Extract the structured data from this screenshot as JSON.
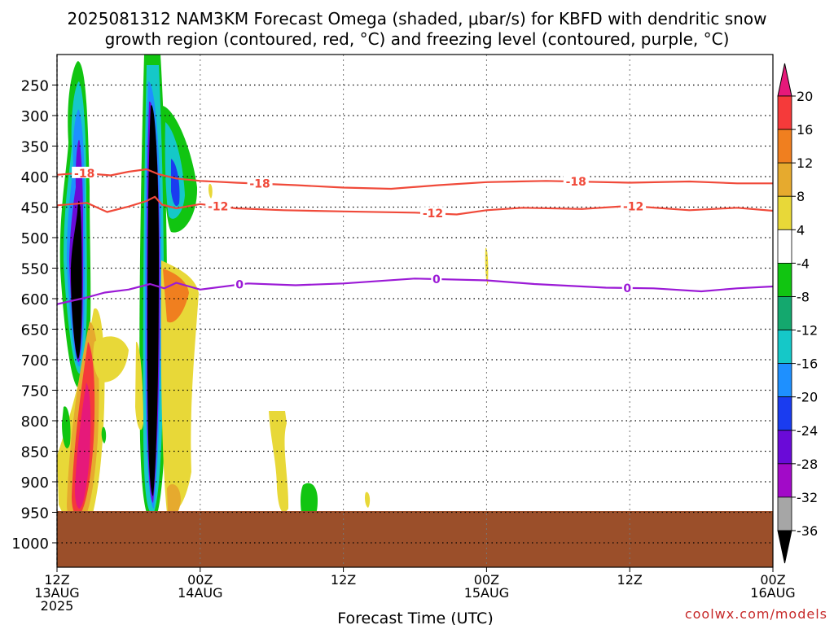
{
  "title": {
    "line1": "2025081312 NAM3KM Forecast Omega (shaded, μbar/s) for KBFD with dendritic snow",
    "line2": "growth region (contoured, red, °C) and freezing level (contoured, purple, °C)"
  },
  "xlabel": "Forecast Time (UTC)",
  "watermark": "coolwx.com/models",
  "chart_data": {
    "type": "heatmap",
    "time_axis": {
      "ticks": [
        {
          "hour": 0,
          "label1": "12Z",
          "label2": "13AUG",
          "label3": "2025"
        },
        {
          "hour": 12,
          "label1": "00Z",
          "label2": "14AUG",
          "label3": ""
        },
        {
          "hour": 24,
          "label1": "12Z",
          "label2": "",
          "label3": ""
        },
        {
          "hour": 36,
          "label1": "00Z",
          "label2": "15AUG",
          "label3": ""
        },
        {
          "hour": 48,
          "label1": "12Z",
          "label2": "",
          "label3": ""
        },
        {
          "hour": 60,
          "label1": "00Z",
          "label2": "16AUG",
          "label3": ""
        }
      ],
      "range_hours": [
        0,
        60
      ]
    },
    "pressure_axis": {
      "ticks": [
        250,
        300,
        350,
        400,
        450,
        500,
        550,
        600,
        650,
        700,
        750,
        800,
        850,
        900,
        950,
        1000
      ],
      "range_mb": [
        200,
        1040
      ],
      "inverted": true
    },
    "grid": true,
    "colorbar": {
      "labels": [
        "20",
        "16",
        "12",
        "8",
        "4",
        "-4",
        "-8",
        "-12",
        "-16",
        "-20",
        "-24",
        "-28",
        "-32",
        "-36"
      ],
      "colors": [
        "#e6197a",
        "#f53a3a",
        "#f07f1f",
        "#e6aa2e",
        "#e8d838",
        "#ffffff",
        "#11c511",
        "#14a86e",
        "#15c8c8",
        "#1e90ff",
        "#1a3cf0",
        "#6a0ad8",
        "#a20ac8",
        "#a6a6a6",
        "#000000"
      ]
    },
    "ground": {
      "color": "#9b4f2a",
      "pressure_mb": 948
    },
    "contours": [
      {
        "label": "-18",
        "color": "#f04a3a",
        "points": [
          [
            0,
            397
          ],
          [
            2,
            394
          ],
          [
            4.5,
            398
          ],
          [
            6,
            392
          ],
          [
            7.5,
            388
          ],
          [
            8.5,
            396
          ],
          [
            10,
            403
          ],
          [
            12,
            407
          ],
          [
            15,
            410
          ],
          [
            20,
            414
          ],
          [
            24,
            418
          ],
          [
            28,
            420
          ],
          [
            32,
            414
          ],
          [
            36,
            409
          ],
          [
            41,
            407
          ],
          [
            48,
            410
          ],
          [
            53,
            408
          ],
          [
            57,
            411
          ],
          [
            60,
            411
          ]
        ],
        "label_hours": [
          2.3,
          17,
          43.5
        ]
      },
      {
        "label": "-12",
        "color": "#f04a3a",
        "points": [
          [
            0,
            447
          ],
          [
            2.5,
            443
          ],
          [
            4.2,
            458
          ],
          [
            6,
            449
          ],
          [
            7.5,
            440
          ],
          [
            8.2,
            433
          ],
          [
            8.8,
            446
          ],
          [
            10,
            452
          ],
          [
            12,
            445
          ],
          [
            15,
            452
          ],
          [
            19,
            455
          ],
          [
            24,
            457
          ],
          [
            30,
            459
          ],
          [
            33.5,
            462
          ],
          [
            36,
            455
          ],
          [
            39,
            451
          ],
          [
            44,
            453
          ],
          [
            48,
            448
          ],
          [
            53,
            455
          ],
          [
            57,
            451
          ],
          [
            60,
            456
          ]
        ],
        "label_hours": [
          13.5,
          31.5,
          48.3
        ]
      },
      {
        "label": "0",
        "color": "#9b1ad6",
        "points": [
          [
            0,
            609
          ],
          [
            2.5,
            598
          ],
          [
            4,
            590
          ],
          [
            6,
            585
          ],
          [
            7.8,
            576
          ],
          [
            9,
            583
          ],
          [
            10,
            574
          ],
          [
            12,
            585
          ],
          [
            16,
            575
          ],
          [
            20,
            578
          ],
          [
            24,
            575
          ],
          [
            30,
            567
          ],
          [
            36,
            570
          ],
          [
            40,
            576
          ],
          [
            46,
            582
          ],
          [
            50,
            583
          ],
          [
            54,
            588
          ],
          [
            57,
            583
          ],
          [
            60,
            580
          ]
        ],
        "label_hours": [
          15.3,
          31.8,
          47.8
        ]
      }
    ]
  }
}
